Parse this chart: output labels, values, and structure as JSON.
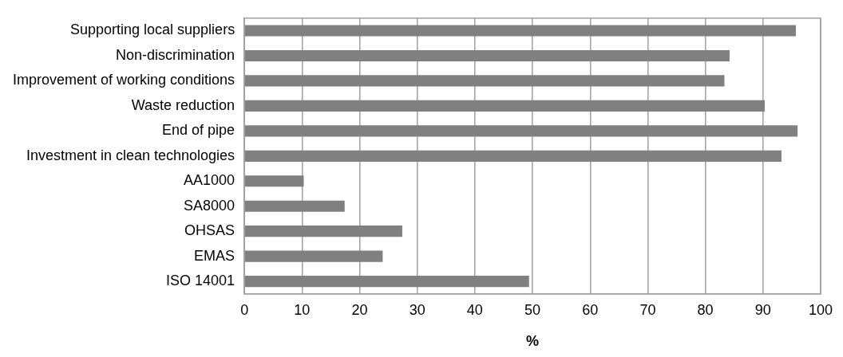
{
  "chart_data": {
    "type": "bar",
    "orientation": "horizontal",
    "xlabel": "%",
    "categories": [
      "Supporting local suppliers",
      "Non-discrimination",
      "Improvement of working conditions",
      "Waste reduction",
      "End of pipe",
      "Investment in clean technologies",
      "AA1000",
      "SA8000",
      "OHSAS",
      "EMAS",
      "ISO 14001"
    ],
    "values": [
      95.7,
      84.2,
      83.3,
      90.3,
      96.0,
      93.2,
      10.3,
      17.4,
      27.4,
      24.0,
      49.4
    ],
    "color": "#808080",
    "xlim": [
      0,
      100
    ],
    "xticks": [
      0,
      10,
      20,
      30,
      40,
      50,
      60,
      70,
      80,
      90,
      100
    ],
    "grid": "x",
    "legend": false
  }
}
